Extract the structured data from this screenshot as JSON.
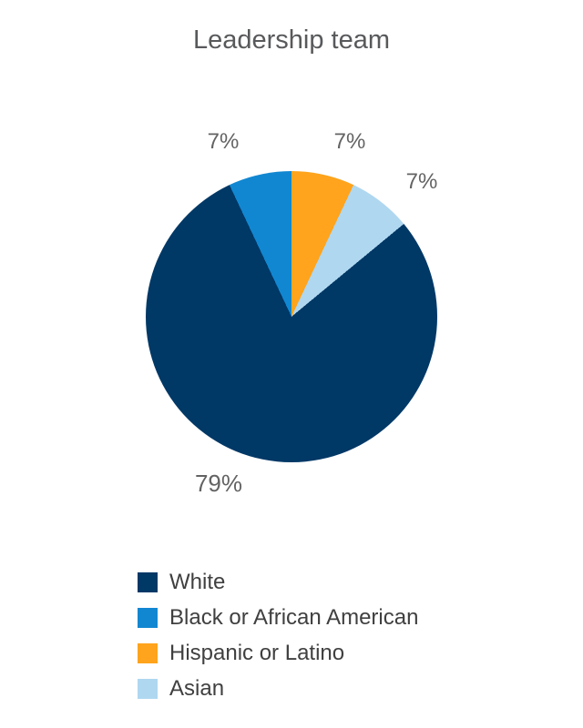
{
  "chart_data": {
    "type": "pie",
    "title": "Leadership team",
    "categories": [
      "White",
      "Black or African American",
      "Hispanic or Latino",
      "Asian"
    ],
    "values": [
      79,
      7,
      7,
      7
    ],
    "labels": [
      "79%",
      "7%",
      "7%",
      "7%"
    ],
    "colors": [
      "#003866",
      "#1287D1",
      "#FFA41C",
      "#AFD7F0"
    ],
    "unit": "%",
    "draw_order_clockwise_from_top": [
      2,
      3,
      0,
      1
    ],
    "start_angle_deg": 0,
    "legend_position": "bottom-left",
    "background": "#ffffff"
  },
  "legend": {
    "items": [
      {
        "label": "White",
        "color": "#003866"
      },
      {
        "label": "Black or African American",
        "color": "#1287D1"
      },
      {
        "label": "Hispanic or Latino",
        "color": "#FFA41C"
      },
      {
        "label": "Asian",
        "color": "#AFD7F0"
      }
    ]
  }
}
